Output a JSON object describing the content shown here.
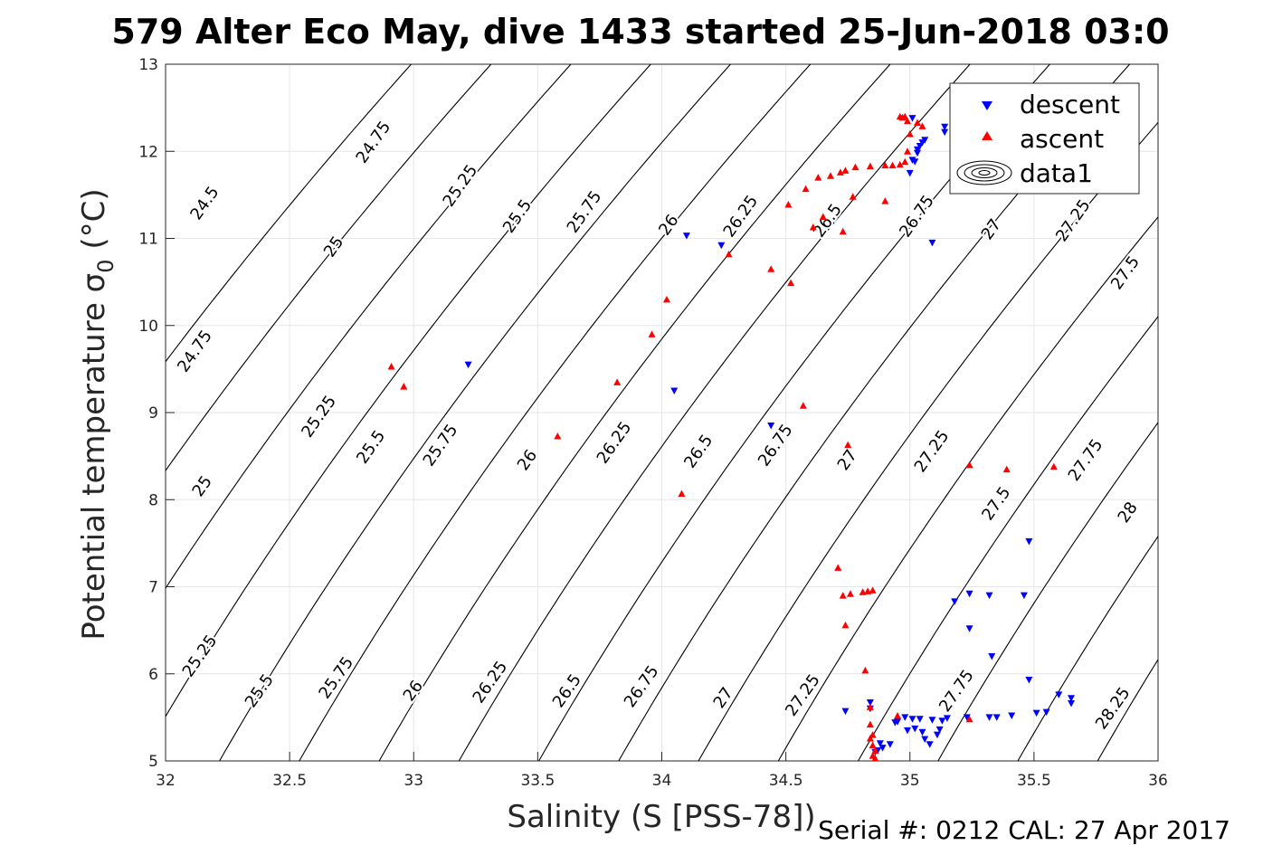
{
  "chart_data": {
    "type": "scatter",
    "title": "579 Alter Eco May, dive 1433 started 25-Jun-2018 03:0",
    "xlabel": "Salinity (S [PSS-78])",
    "ylabel_main": "Potential temperature σ",
    "ylabel_sub": "0",
    "ylabel_unit": " (°C)",
    "xlim": [
      32,
      36
    ],
    "ylim": [
      5,
      13
    ],
    "xticks": [
      32,
      32.5,
      33,
      33.5,
      34,
      34.5,
      35,
      35.5,
      36
    ],
    "xtick_labels": [
      "32",
      "32.5",
      "33",
      "33.5",
      "34",
      "34.5",
      "35",
      "35.5",
      "36"
    ],
    "yticks": [
      5,
      6,
      7,
      8,
      9,
      10,
      11,
      12,
      13
    ],
    "ytick_labels": [
      "5",
      "6",
      "7",
      "8",
      "9",
      "10",
      "11",
      "12",
      "13"
    ],
    "grid": true,
    "legend_position": "top-right",
    "legend": [
      "descent",
      "ascent",
      "data1"
    ],
    "footer": "Serial #: 0212  CAL: 27 Apr 2017",
    "colors": {
      "descent": "#0000ff",
      "ascent": "#ff0000",
      "contour": "#000000"
    },
    "contours": {
      "levels": [
        24.5,
        24.75,
        25,
        25.25,
        25.5,
        25.75,
        26,
        26.25,
        26.5,
        26.75,
        27,
        27.25,
        27.5,
        27.75,
        28,
        28.25
      ],
      "labels": [
        {
          "text": "24.75",
          "s": 32.84,
          "t": 12.1,
          "angle": -55
        },
        {
          "text": "24.5",
          "s": 32.16,
          "t": 11.4,
          "angle": -55
        },
        {
          "text": "25",
          "s": 32.68,
          "t": 10.9,
          "angle": -55
        },
        {
          "text": "25.25",
          "s": 33.19,
          "t": 11.6,
          "angle": -55
        },
        {
          "text": "25.5",
          "s": 33.42,
          "t": 11.25,
          "angle": -55
        },
        {
          "text": "25.75",
          "s": 33.69,
          "t": 11.3,
          "angle": -55
        },
        {
          "text": "26",
          "s": 34.03,
          "t": 11.15,
          "angle": -55
        },
        {
          "text": "26.25",
          "s": 34.32,
          "t": 11.25,
          "angle": -55
        },
        {
          "text": "26.5",
          "s": 34.67,
          "t": 11.2,
          "angle": -55
        },
        {
          "text": "26.75",
          "s": 35.03,
          "t": 11.25,
          "angle": -55
        },
        {
          "text": "27",
          "s": 35.33,
          "t": 11.1,
          "angle": -55
        },
        {
          "text": "27.25",
          "s": 35.66,
          "t": 11.2,
          "angle": -55
        },
        {
          "text": "27.5",
          "s": 35.87,
          "t": 10.6,
          "angle": -55
        },
        {
          "text": "24.75",
          "s": 32.12,
          "t": 9.7,
          "angle": -55
        },
        {
          "text": "25",
          "s": 32.15,
          "t": 8.15,
          "angle": -55
        },
        {
          "text": "25.25",
          "s": 32.62,
          "t": 8.95,
          "angle": -55
        },
        {
          "text": "25.5",
          "s": 32.83,
          "t": 8.6,
          "angle": -55
        },
        {
          "text": "25.75",
          "s": 33.11,
          "t": 8.62,
          "angle": -55
        },
        {
          "text": "26",
          "s": 33.46,
          "t": 8.45,
          "angle": -55
        },
        {
          "text": "26.25",
          "s": 33.81,
          "t": 8.65,
          "angle": -55
        },
        {
          "text": "26.5",
          "s": 34.15,
          "t": 8.55,
          "angle": -55
        },
        {
          "text": "26.75",
          "s": 34.46,
          "t": 8.62,
          "angle": -55
        },
        {
          "text": "27",
          "s": 34.75,
          "t": 8.45,
          "angle": -55
        },
        {
          "text": "27.25",
          "s": 35.09,
          "t": 8.55,
          "angle": -55
        },
        {
          "text": "27.5",
          "s": 35.35,
          "t": 7.95,
          "angle": -55
        },
        {
          "text": "27.75",
          "s": 35.71,
          "t": 8.45,
          "angle": -55
        },
        {
          "text": "28",
          "s": 35.88,
          "t": 7.85,
          "angle": -55
        },
        {
          "text": "25.25",
          "s": 32.14,
          "t": 6.2,
          "angle": -55
        },
        {
          "text": "25.5",
          "s": 32.38,
          "t": 5.8,
          "angle": -55
        },
        {
          "text": "25.75",
          "s": 32.69,
          "t": 5.95,
          "angle": -55
        },
        {
          "text": "26",
          "s": 33.0,
          "t": 5.8,
          "angle": -55
        },
        {
          "text": "26.25",
          "s": 33.31,
          "t": 5.9,
          "angle": -55
        },
        {
          "text": "26.5",
          "s": 33.62,
          "t": 5.8,
          "angle": -55
        },
        {
          "text": "26.75",
          "s": 33.92,
          "t": 5.85,
          "angle": -55
        },
        {
          "text": "27",
          "s": 34.25,
          "t": 5.72,
          "angle": -55
        },
        {
          "text": "27.25",
          "s": 34.57,
          "t": 5.75,
          "angle": -55
        },
        {
          "text": "27.75",
          "s": 35.19,
          "t": 5.8,
          "angle": -55
        },
        {
          "text": "28.25",
          "s": 35.82,
          "t": 5.6,
          "angle": -55
        }
      ]
    },
    "series": [
      {
        "name": "descent",
        "marker": "triangle-down",
        "points": [
          [
            35.01,
            12.38
          ],
          [
            35.0,
            11.75
          ],
          [
            35.01,
            11.9
          ],
          [
            35.03,
            11.98
          ],
          [
            35.04,
            12.06
          ],
          [
            35.05,
            12.1
          ],
          [
            35.06,
            12.13
          ],
          [
            35.02,
            11.88
          ],
          [
            35.03,
            12.02
          ],
          [
            35.14,
            12.28
          ],
          [
            35.14,
            12.22
          ],
          [
            35.22,
            12.22
          ],
          [
            35.23,
            12.18
          ],
          [
            35.09,
            10.95
          ],
          [
            34.1,
            11.03
          ],
          [
            34.24,
            10.92
          ],
          [
            33.22,
            9.55
          ],
          [
            34.05,
            9.25
          ],
          [
            34.44,
            8.85
          ],
          [
            35.48,
            7.52
          ],
          [
            35.18,
            6.83
          ],
          [
            35.24,
            6.92
          ],
          [
            35.32,
            6.9
          ],
          [
            35.46,
            6.9
          ],
          [
            35.24,
            6.52
          ],
          [
            35.33,
            6.2
          ],
          [
            35.48,
            5.93
          ],
          [
            35.6,
            5.76
          ],
          [
            35.65,
            5.72
          ],
          [
            35.65,
            5.66
          ],
          [
            35.55,
            5.56
          ],
          [
            35.51,
            5.55
          ],
          [
            35.41,
            5.52
          ],
          [
            35.35,
            5.5
          ],
          [
            35.32,
            5.5
          ],
          [
            35.23,
            5.5
          ],
          [
            35.15,
            5.49
          ],
          [
            35.13,
            5.46
          ],
          [
            35.09,
            5.47
          ],
          [
            35.04,
            5.48
          ],
          [
            35.01,
            5.48
          ],
          [
            34.98,
            5.5
          ],
          [
            34.95,
            5.45
          ],
          [
            34.94,
            5.44
          ],
          [
            34.99,
            5.35
          ],
          [
            35.02,
            5.37
          ],
          [
            35.06,
            5.25
          ],
          [
            35.08,
            5.19
          ],
          [
            35.11,
            5.3
          ],
          [
            35.12,
            5.36
          ],
          [
            35.05,
            5.33
          ],
          [
            34.92,
            5.19
          ],
          [
            34.89,
            5.15
          ],
          [
            34.87,
            5.12
          ],
          [
            34.86,
            5.1
          ],
          [
            34.88,
            5.2
          ],
          [
            34.84,
            5.6
          ],
          [
            34.84,
            5.67
          ],
          [
            34.74,
            5.57
          ]
        ]
      },
      {
        "name": "ascent",
        "marker": "triangle-up",
        "points": [
          [
            34.96,
            12.4
          ],
          [
            34.97,
            12.39
          ],
          [
            34.98,
            12.4
          ],
          [
            34.99,
            12.35
          ],
          [
            35.03,
            12.33
          ],
          [
            35.05,
            12.29
          ],
          [
            35.0,
            12.2
          ],
          [
            34.99,
            12.0
          ],
          [
            34.98,
            11.88
          ],
          [
            34.96,
            11.85
          ],
          [
            34.93,
            11.84
          ],
          [
            34.9,
            11.84
          ],
          [
            34.84,
            11.83
          ],
          [
            34.78,
            11.82
          ],
          [
            34.74,
            11.78
          ],
          [
            34.72,
            11.76
          ],
          [
            34.68,
            11.72
          ],
          [
            34.63,
            11.7
          ],
          [
            34.58,
            11.57
          ],
          [
            34.61,
            11.13
          ],
          [
            34.65,
            11.25
          ],
          [
            34.73,
            11.08
          ],
          [
            34.77,
            11.48
          ],
          [
            34.9,
            11.43
          ],
          [
            34.51,
            11.39
          ],
          [
            34.27,
            10.82
          ],
          [
            34.44,
            10.65
          ],
          [
            34.52,
            10.49
          ],
          [
            34.02,
            10.3
          ],
          [
            33.96,
            9.9
          ],
          [
            32.91,
            9.53
          ],
          [
            32.96,
            9.3
          ],
          [
            33.82,
            9.35
          ],
          [
            34.57,
            9.08
          ],
          [
            33.58,
            8.73
          ],
          [
            34.08,
            8.07
          ],
          [
            34.75,
            8.63
          ],
          [
            35.24,
            8.4
          ],
          [
            35.39,
            8.35
          ],
          [
            35.58,
            8.38
          ],
          [
            34.71,
            7.22
          ],
          [
            34.73,
            6.9
          ],
          [
            34.76,
            6.92
          ],
          [
            34.81,
            6.94
          ],
          [
            34.83,
            6.95
          ],
          [
            34.85,
            6.96
          ],
          [
            34.74,
            6.56
          ],
          [
            34.82,
            6.04
          ],
          [
            34.84,
            5.62
          ],
          [
            34.84,
            5.42
          ],
          [
            34.85,
            5.3
          ],
          [
            34.84,
            5.26
          ],
          [
            34.85,
            5.18
          ],
          [
            34.86,
            5.12
          ],
          [
            34.85,
            5.06
          ],
          [
            34.86,
            5.03
          ],
          [
            34.95,
            5.52
          ],
          [
            35.24,
            5.48
          ]
        ]
      }
    ]
  }
}
